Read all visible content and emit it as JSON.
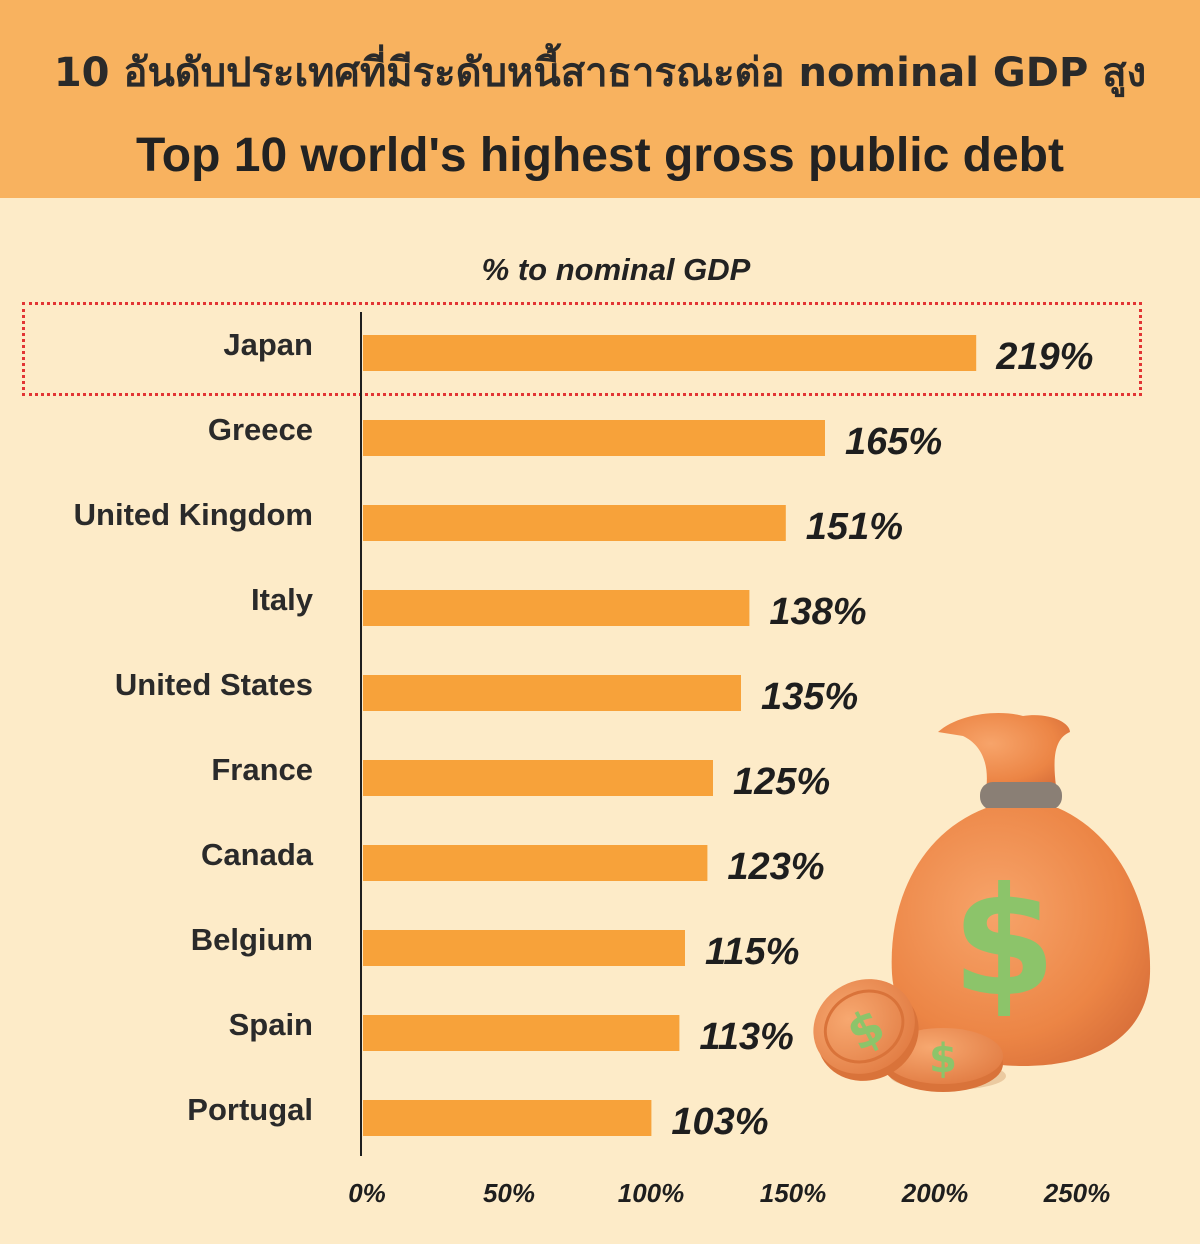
{
  "header": {
    "title_th": "10 อันดับประเทศที่มีระดับหนี้สาธารณะต่อ nominal GDP สูง",
    "title_en": "Top 10 world's highest gross public debt"
  },
  "colors": {
    "background": "#fdebc8",
    "header": "#f8b25f",
    "bar": "#f7a23a",
    "highlight_border": "#e23434",
    "bag": "#ef8a48",
    "dollar": "#8cc46a"
  },
  "chart_data": {
    "type": "bar",
    "orientation": "horizontal",
    "title": "% to nominal GDP",
    "categories": [
      "Japan",
      "Greece",
      "United Kingdom",
      "Italy",
      "United States",
      "France",
      "Canada",
      "Belgium",
      "Spain",
      "Portugal"
    ],
    "values": [
      219,
      165,
      151,
      138,
      135,
      125,
      123,
      115,
      113,
      103
    ],
    "value_labels": [
      "219%",
      "165%",
      "151%",
      "138%",
      "135%",
      "125%",
      "123%",
      "115%",
      "113%",
      "103%"
    ],
    "xlim": [
      0,
      250
    ],
    "xticks": [
      "0%",
      "50%",
      "100%",
      "150%",
      "200%",
      "250%"
    ],
    "xtick_values": [
      0,
      50,
      100,
      150,
      200,
      250
    ],
    "highlighted_category": "Japan",
    "grid": false,
    "legend": "none"
  }
}
